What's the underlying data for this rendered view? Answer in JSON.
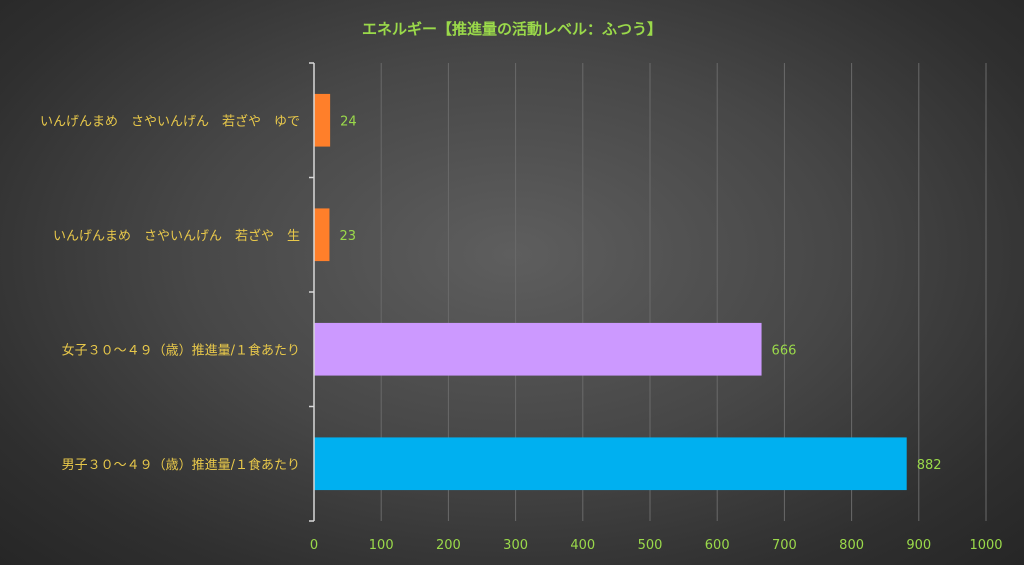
{
  "chart_data": {
    "type": "bar",
    "orientation": "horizontal",
    "title": "エネルギー【推進量の活動レベル：ふつう】",
    "categories": [
      "いんげんまめ　さやいんげん　若ざや　ゆで",
      "いんげんまめ　さやいんげん　若ざや　生",
      "女子３０～４９（歳）推進量/１食あたり",
      "男子３０～４９（歳）推進量/１食あたり"
    ],
    "values": [
      24,
      23,
      666,
      882
    ],
    "data_labels": [
      "24",
      "23",
      "666",
      "882"
    ],
    "bar_colors": [
      "#ff7f2a",
      "#ff7f2a",
      "#cc99ff",
      "#00b0f0"
    ],
    "xlim": [
      0,
      1000
    ],
    "xticks": [
      0,
      100,
      200,
      300,
      400,
      500,
      600,
      700,
      800,
      900,
      1000
    ],
    "xtick_labels": [
      "0",
      "100",
      "200",
      "300",
      "400",
      "500",
      "600",
      "700",
      "800",
      "900",
      "1000"
    ],
    "grid": true,
    "legend": "none"
  },
  "colors": {
    "title": "#9ad94a",
    "category_label": "#e8c84a",
    "tick_label": "#9ad94a",
    "data_label": "#9ad94a"
  }
}
